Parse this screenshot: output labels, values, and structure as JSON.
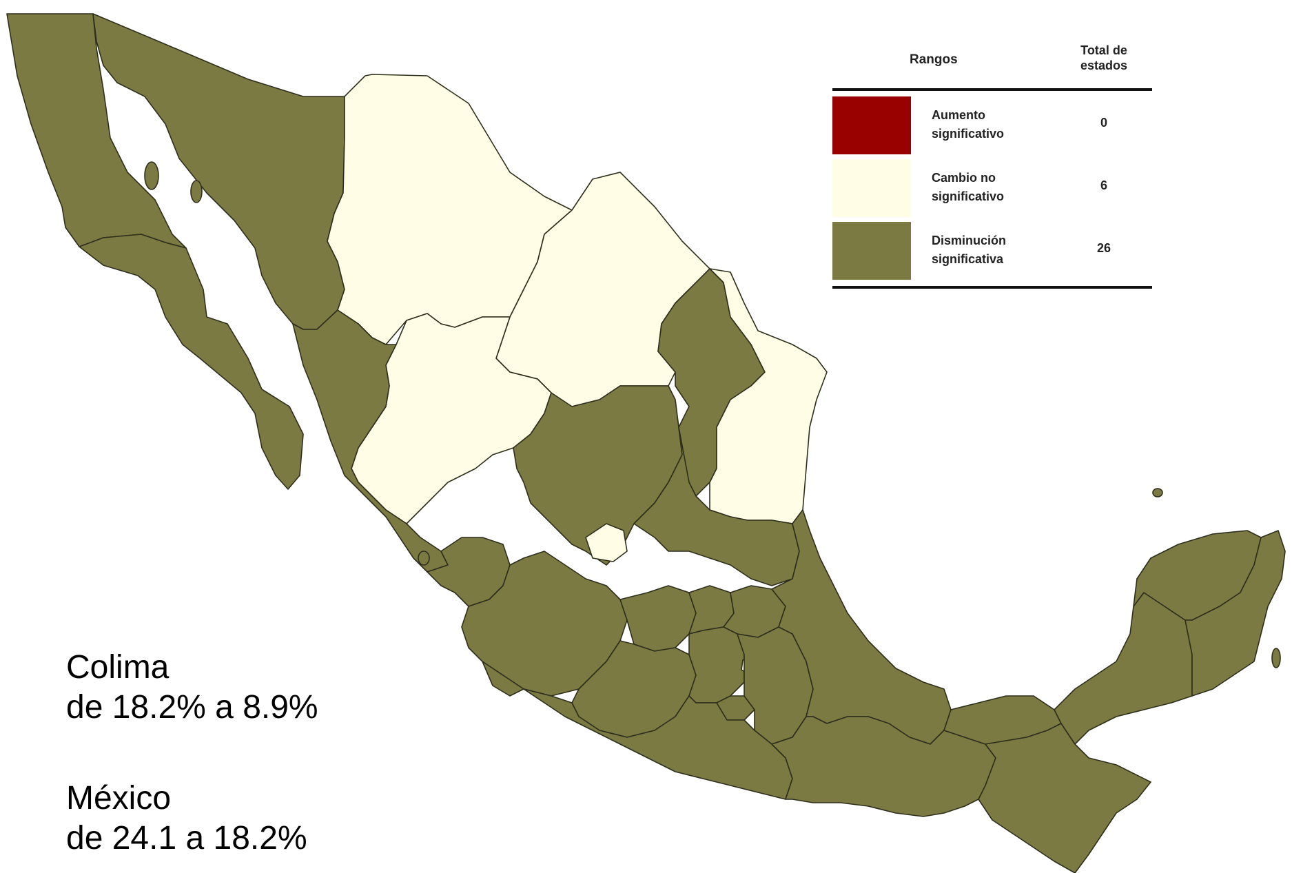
{
  "legend": {
    "header_ranges": "Rangos",
    "header_total": "Total de\nestados",
    "rows": [
      {
        "label": "Aumento\nsignificativo",
        "count": "0",
        "color": "#990000"
      },
      {
        "label": "Cambio no\nsignificativo",
        "count": "6",
        "color": "#fffde6"
      },
      {
        "label": "Disminución\nsignificativa",
        "count": "26",
        "color": "#7a7a42"
      }
    ]
  },
  "annotations": {
    "colima_name": "Colima",
    "colima_change": "de 18.2% a 8.9%",
    "mexico_name": "México",
    "mexico_change": "de 24.1 a 18.2%"
  },
  "map": {
    "region": "México",
    "colors": {
      "decrease": "#7a7a42",
      "no_change": "#fffde6",
      "increase": "#990000",
      "border": "#2e2e1c"
    }
  }
}
